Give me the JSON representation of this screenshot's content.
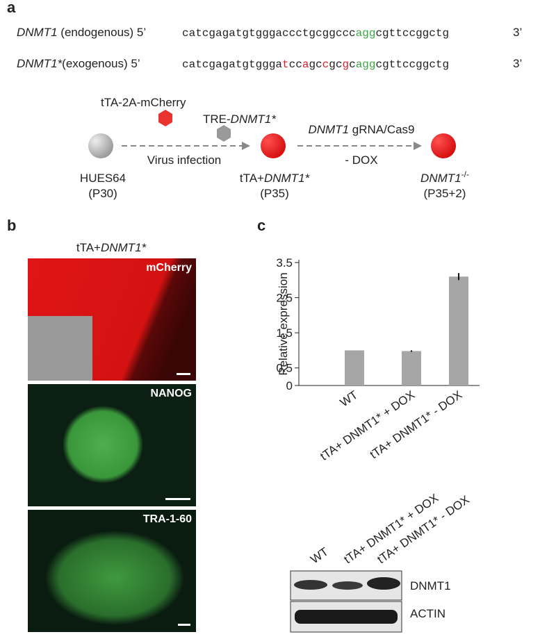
{
  "panel_a": {
    "label": "a",
    "sequences": [
      {
        "gene": "DNMT1",
        "note": " (endogenous) 5’",
        "end": "3’",
        "segments": [
          {
            "text": "catcgagatgtgggaccctgcggccc",
            "color": "#222222"
          },
          {
            "text": "agg",
            "color": "#3aa845"
          },
          {
            "text": "cgttccggctg",
            "color": "#222222"
          }
        ]
      },
      {
        "gene": "DNMT1*",
        "note": "(exogenous) 5’",
        "end": "3’",
        "segments": [
          {
            "text": "catcgagatgtggga",
            "color": "#222222"
          },
          {
            "text": "t",
            "color": "#e0202a"
          },
          {
            "text": "cc",
            "color": "#222222"
          },
          {
            "text": "a",
            "color": "#e0202a"
          },
          {
            "text": "gc",
            "color": "#222222"
          },
          {
            "text": "c",
            "color": "#e0202a"
          },
          {
            "text": "gc",
            "color": "#222222"
          },
          {
            "text": "g",
            "color": "#e0202a"
          },
          {
            "text": "c",
            "color": "#222222"
          },
          {
            "text": "agg",
            "color": "#3aa845"
          },
          {
            "text": "cgttccggctg",
            "color": "#222222"
          }
        ]
      }
    ],
    "diagram": {
      "vector1": {
        "parts": [
          {
            "text": "tTA-2A-mCherry"
          }
        ]
      },
      "vector2": {
        "parts": [
          {
            "text": "TRE-"
          },
          {
            "text": "DNMT1*",
            "italic": true
          }
        ]
      },
      "step1": {
        "parts": [
          {
            "text": "Virus infection"
          }
        ]
      },
      "step2_top": {
        "parts": [
          {
            "text": "DNMT1",
            "italic": true
          },
          {
            "text": " gRNA/Cas9"
          }
        ]
      },
      "step2_bottom": {
        "parts": [
          {
            "text": "- DOX"
          }
        ]
      },
      "cell1_name": {
        "parts": [
          {
            "text": "HUES64"
          }
        ]
      },
      "cell1_passage": {
        "parts": [
          {
            "text": "(P30)"
          }
        ]
      },
      "cell2_name": {
        "parts": [
          {
            "text": "tTA+"
          },
          {
            "text": "DNMT1*",
            "italic": true
          }
        ]
      },
      "cell2_passage": {
        "parts": [
          {
            "text": "(P35)"
          }
        ]
      },
      "cell3_name": {
        "parts": [
          {
            "text": "DNMT1",
            "italic": true
          },
          {
            "text": "-/-",
            "sup": true
          }
        ]
      },
      "cell3_passage": {
        "parts": [
          {
            "text": "(P35+2)"
          }
        ]
      }
    }
  },
  "panel_b": {
    "label": "b",
    "title": {
      "parts": [
        {
          "text": "tTA+"
        },
        {
          "text": "DNMT1*",
          "italic": true
        }
      ]
    },
    "images": [
      "mCherry",
      "NANOG",
      "TRA-1-60"
    ]
  },
  "panel_c": {
    "label": "c",
    "blot": {
      "lanes": [
        "WT",
        "tTA+ DNMT1* + DOX",
        "tTA+ DNMT1*  - DOX"
      ],
      "rows": [
        "DNMT1",
        "ACTIN"
      ]
    }
  },
  "chart_data": {
    "type": "bar",
    "y_label": "Relative expression",
    "categories": [
      "WT",
      "tTA+ DNMT1* + DOX",
      "tTA+ DNMT1*  - DOX"
    ],
    "values": [
      1,
      0.98,
      3.1
    ],
    "errors": [
      0,
      0.02,
      0.1
    ],
    "color": "#a6a6a6",
    "ylim": [
      0,
      3.5
    ],
    "yticks": [
      0,
      0.5,
      1.5,
      2.5,
      3.5
    ],
    "grid": false
  }
}
